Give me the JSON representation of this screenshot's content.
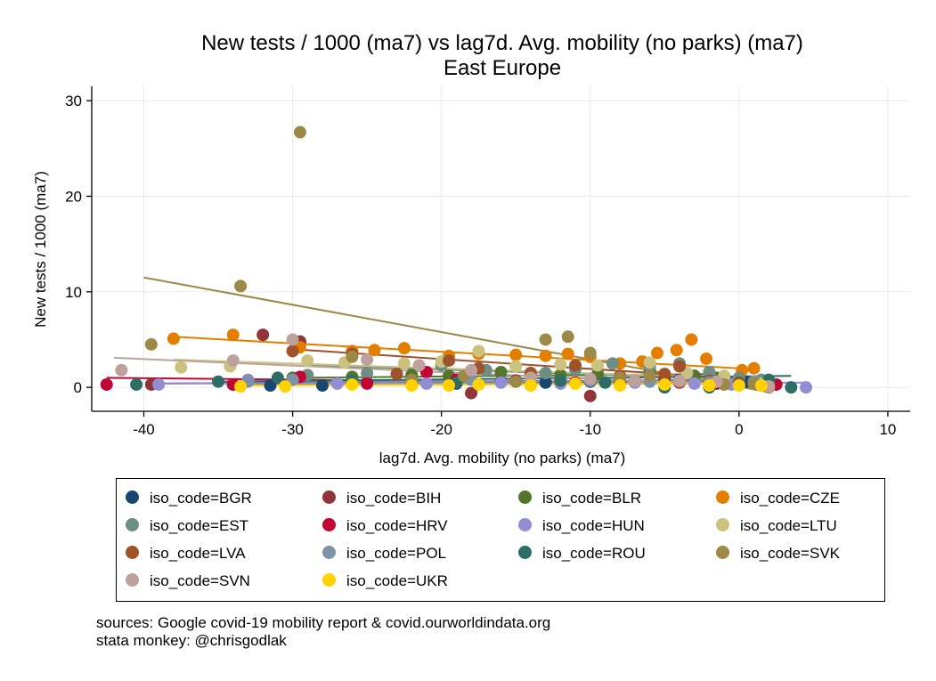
{
  "chart_data": {
    "type": "scatter",
    "title": "New tests / 1000 (ma7) vs lag7d. Avg. mobility (no parks) (ma7)",
    "subtitle": "East Europe",
    "xlabel": "lag7d. Avg. mobility (no parks) (ma7)",
    "ylabel": "New tests / 1000 (ma7)",
    "xlim": [
      -43.5,
      11.5
    ],
    "ylim": [
      -2.5,
      31.5
    ],
    "xticks": [
      -40,
      -30,
      -20,
      -10,
      0,
      10
    ],
    "yticks": [
      0,
      10,
      20,
      30
    ],
    "grid": true,
    "legend_position": "bottom",
    "notes": [
      "sources: Google covid-19 mobility report & covid.ourworldindata.org",
      "stata monkey: @chrisgodlak"
    ],
    "series": [
      {
        "name": "iso_code=BGR",
        "color": "#1a476f",
        "points": [
          [
            -34,
            0.3
          ],
          [
            -31.5,
            0.2
          ],
          [
            -28,
            0.2
          ],
          [
            -25,
            0.5
          ],
          [
            -22,
            0.4
          ],
          [
            -19,
            0.4
          ],
          [
            -16,
            0.6
          ],
          [
            -13,
            0.5
          ],
          [
            -10,
            0.6
          ],
          [
            -7,
            0.7
          ],
          [
            -4,
            0.8
          ],
          [
            -1,
            0.5
          ],
          [
            0.5,
            0.6
          ]
        ],
        "fit": [
          [
            -34,
            0.3
          ],
          [
            0.5,
            0.7
          ]
        ]
      },
      {
        "name": "iso_code=BIH",
        "color": "#90353b",
        "points": [
          [
            -39.5,
            0.3
          ],
          [
            -32,
            5.5
          ],
          [
            -29.5,
            4.8
          ],
          [
            -26,
            0.4
          ],
          [
            -22,
            0.9
          ],
          [
            -18,
            -0.6
          ],
          [
            -14,
            0.5
          ],
          [
            -10,
            -0.9
          ],
          [
            -8,
            0.4
          ],
          [
            -5,
            0.9
          ],
          [
            -3,
            1.2
          ],
          [
            0,
            0.5
          ],
          [
            1.5,
            0.3
          ]
        ],
        "fit": [
          [
            -39.5,
            0.4
          ],
          [
            1.5,
            0.8
          ]
        ]
      },
      {
        "name": "iso_code=BLR",
        "color": "#55752f",
        "points": [
          [
            -30,
            1.0
          ],
          [
            -26,
            1.1
          ],
          [
            -22,
            1.3
          ],
          [
            -19.5,
            1.2
          ],
          [
            -16,
            1.6
          ],
          [
            -12,
            1.3
          ],
          [
            -9.5,
            1.4
          ],
          [
            -6,
            1.8
          ],
          [
            -3,
            1.2
          ],
          [
            -1.5,
            1.0
          ]
        ],
        "fit": [
          [
            -30,
            1.0
          ],
          [
            -1.5,
            1.4
          ]
        ]
      },
      {
        "name": "iso_code=CZE",
        "color": "#e37e00",
        "points": [
          [
            -38,
            5.1
          ],
          [
            -34,
            5.5
          ],
          [
            -29.5,
            4.2
          ],
          [
            -26,
            3.8
          ],
          [
            -24.5,
            3.9
          ],
          [
            -22.5,
            4.1
          ],
          [
            -19.5,
            3.3
          ],
          [
            -17.5,
            3.5
          ],
          [
            -15,
            3.4
          ],
          [
            -13,
            3.3
          ],
          [
            -11.5,
            3.5
          ],
          [
            -10,
            3.2
          ],
          [
            -8,
            2.5
          ],
          [
            -6.5,
            2.7
          ],
          [
            -5.5,
            3.6
          ],
          [
            -4.2,
            3.9
          ],
          [
            -3.2,
            5.0
          ],
          [
            -2.2,
            3.0
          ],
          [
            0.2,
            1.8
          ],
          [
            1,
            2.0
          ]
        ],
        "fit": [
          [
            -38,
            5.3
          ],
          [
            1,
            1.9
          ]
        ]
      },
      {
        "name": "iso_code=EST",
        "color": "#6e8e84",
        "points": [
          [
            -29,
            1.3
          ],
          [
            -25,
            1.5
          ],
          [
            -20,
            2.3
          ],
          [
            -17,
            1.8
          ],
          [
            -13,
            1.5
          ],
          [
            -11,
            1.9
          ],
          [
            -8.5,
            2.5
          ],
          [
            -6,
            2.2
          ],
          [
            -4,
            2.5
          ],
          [
            -2,
            1.6
          ],
          [
            0,
            1.0
          ],
          [
            1.5,
            0.8
          ]
        ],
        "fit": [
          [
            -29,
            2.3
          ],
          [
            2,
            0.8
          ]
        ]
      },
      {
        "name": "iso_code=HRV",
        "color": "#c10534",
        "points": [
          [
            -42.5,
            0.3
          ],
          [
            -34,
            0.3
          ],
          [
            -29.5,
            1.1
          ],
          [
            -25,
            0.4
          ],
          [
            -21,
            1.6
          ],
          [
            -19,
            0.8
          ],
          [
            -15,
            0.7
          ],
          [
            -11,
            0.5
          ],
          [
            -8,
            1.0
          ],
          [
            -4,
            0.5
          ],
          [
            -1.5,
            0.4
          ],
          [
            1,
            0.5
          ],
          [
            2.5,
            0.3
          ]
        ],
        "fit": [
          [
            -42.5,
            1.0
          ],
          [
            2.5,
            0.3
          ]
        ]
      },
      {
        "name": "iso_code=HUN",
        "color": "#938dd2",
        "points": [
          [
            -39,
            0.3
          ],
          [
            -33,
            0.8
          ],
          [
            -27,
            0.4
          ],
          [
            -21,
            0.4
          ],
          [
            -16,
            0.5
          ],
          [
            -12,
            0.4
          ],
          [
            -7,
            0.5
          ],
          [
            -3,
            0.4
          ],
          [
            -0.5,
            0.3
          ],
          [
            2,
            0.6
          ],
          [
            4.5,
            0.0
          ]
        ],
        "fit": [
          [
            -39,
            0.4
          ],
          [
            4.5,
            0.5
          ]
        ]
      },
      {
        "name": "iso_code=LTU",
        "color": "#cac27e",
        "points": [
          [
            -37.5,
            2.1
          ],
          [
            -34.2,
            2.2
          ],
          [
            -29,
            2.8
          ],
          [
            -26.5,
            2.6
          ],
          [
            -22.5,
            2.5
          ],
          [
            -20,
            2.7
          ],
          [
            -17.5,
            3.8
          ],
          [
            -15,
            2.2
          ],
          [
            -12,
            2.4
          ],
          [
            -9.5,
            2.3
          ],
          [
            -6,
            2.6
          ],
          [
            -3.5,
            1.5
          ],
          [
            -1,
            1.2
          ],
          [
            1.5,
            0.4
          ]
        ],
        "fit": [
          [
            -38,
            2.9
          ],
          [
            1.5,
            0.9
          ]
        ]
      },
      {
        "name": "iso_code=LVA",
        "color": "#a0522d",
        "points": [
          [
            -30,
            3.8
          ],
          [
            -26,
            3.5
          ],
          [
            -23,
            1.4
          ],
          [
            -19.5,
            2.8
          ],
          [
            -17.5,
            2.0
          ],
          [
            -14,
            1.5
          ],
          [
            -11,
            2.3
          ],
          [
            -8,
            1.2
          ],
          [
            -5,
            1.4
          ],
          [
            -4,
            2.2
          ],
          [
            -2,
            0.7
          ],
          [
            0,
            0.5
          ]
        ],
        "fit": [
          [
            -30,
            4.0
          ],
          [
            0,
            0.9
          ]
        ]
      },
      {
        "name": "iso_code=POL",
        "color": "#7b92a8",
        "points": [
          [
            -33,
            0.6
          ],
          [
            -30,
            0.8
          ],
          [
            -26,
            0.7
          ],
          [
            -22,
            0.6
          ],
          [
            -18,
            0.8
          ],
          [
            -14,
            0.6
          ],
          [
            -10,
            0.7
          ],
          [
            -6,
            0.6
          ],
          [
            -2,
            0.5
          ],
          [
            1,
            0.6
          ]
        ],
        "fit": [
          [
            -33,
            0.6
          ],
          [
            1,
            0.7
          ]
        ]
      },
      {
        "name": "iso_code=ROU",
        "color": "#2d6d66",
        "points": [
          [
            -40.5,
            0.3
          ],
          [
            -35,
            0.6
          ],
          [
            -31,
            1.0
          ],
          [
            -26,
            0.7
          ],
          [
            -22,
            0.8
          ],
          [
            -19,
            0.5
          ],
          [
            -15,
            0.6
          ],
          [
            -12,
            0.7
          ],
          [
            -9,
            0.5
          ],
          [
            -5,
            0.0
          ],
          [
            -2,
            0.0
          ],
          [
            0,
            0.3
          ],
          [
            2,
            0.8
          ],
          [
            3.5,
            0.0
          ]
        ],
        "fit": [
          [
            -35,
            0.6
          ],
          [
            3.5,
            1.2
          ]
        ]
      },
      {
        "name": "iso_code=SVK",
        "color": "#9c8847",
        "points": [
          [
            -39.5,
            4.5
          ],
          [
            -33.5,
            10.6
          ],
          [
            -29.5,
            26.7
          ],
          [
            -26,
            3.2
          ],
          [
            -22,
            0.8
          ],
          [
            -18.5,
            1.2
          ],
          [
            -15,
            0.6
          ],
          [
            -13,
            5.0
          ],
          [
            -11.5,
            5.3
          ],
          [
            -10,
            3.6
          ],
          [
            -8,
            1.0
          ],
          [
            -6,
            1.2
          ],
          [
            -4,
            0.6
          ],
          [
            -1,
            0.3
          ],
          [
            1,
            0.4
          ],
          [
            2,
            0.0
          ]
        ],
        "fit": [
          [
            -40,
            11.5
          ],
          [
            2,
            -0.5
          ]
        ]
      },
      {
        "name": "iso_code=SVN",
        "color": "#bfa19c",
        "points": [
          [
            -41.5,
            1.8
          ],
          [
            -34,
            2.8
          ],
          [
            -30,
            5.0
          ],
          [
            -25,
            2.9
          ],
          [
            -21.5,
            2.3
          ],
          [
            -18,
            1.8
          ],
          [
            -14,
            1.0
          ],
          [
            -10,
            0.9
          ],
          [
            -7,
            0.7
          ],
          [
            -4,
            0.7
          ],
          [
            -1.5,
            0.6
          ],
          [
            2,
            0.1
          ]
        ],
        "fit": [
          [
            -42,
            3.1
          ],
          [
            2,
            0.1
          ]
        ]
      },
      {
        "name": "iso_code=UKR",
        "color": "#ffd200",
        "points": [
          [
            -33.5,
            0.1
          ],
          [
            -30.5,
            0.1
          ],
          [
            -26,
            0.3
          ],
          [
            -22,
            0.2
          ],
          [
            -19.5,
            0.2
          ],
          [
            -17.5,
            0.3
          ],
          [
            -14,
            0.2
          ],
          [
            -11,
            0.4
          ],
          [
            -8,
            0.2
          ],
          [
            -5,
            0.3
          ],
          [
            -2,
            0.2
          ],
          [
            0,
            0.2
          ],
          [
            1.5,
            0.2
          ]
        ],
        "fit": [
          [
            -34,
            0.2
          ],
          [
            1.5,
            0.4
          ]
        ]
      }
    ]
  }
}
